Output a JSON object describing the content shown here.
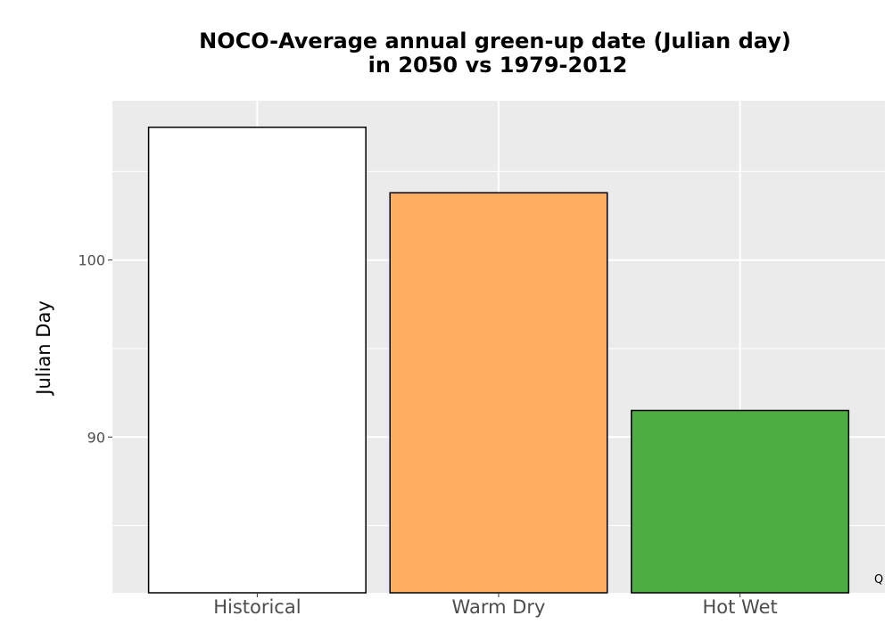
{
  "chart_data": {
    "type": "bar",
    "title_lines": [
      "NOCO-Average annual green-up date (Julian day)",
      "in 2050 vs 1979-2012"
    ],
    "xlabel": "",
    "ylabel": "Julian Day",
    "categories": [
      "Historical",
      "Warm Dry",
      "Hot Wet"
    ],
    "values": [
      107.5,
      103.8,
      91.5
    ],
    "bar_colors": [
      "#ffffff",
      "#fdae61",
      "#4dac42"
    ],
    "bar_outline": "#000000",
    "ylim": [
      81.2,
      109
    ],
    "yticks": [
      90,
      100
    ],
    "grid": true,
    "panel_background": "#ebebeb",
    "grid_color": "#ffffff"
  },
  "corner_mark": "Q"
}
